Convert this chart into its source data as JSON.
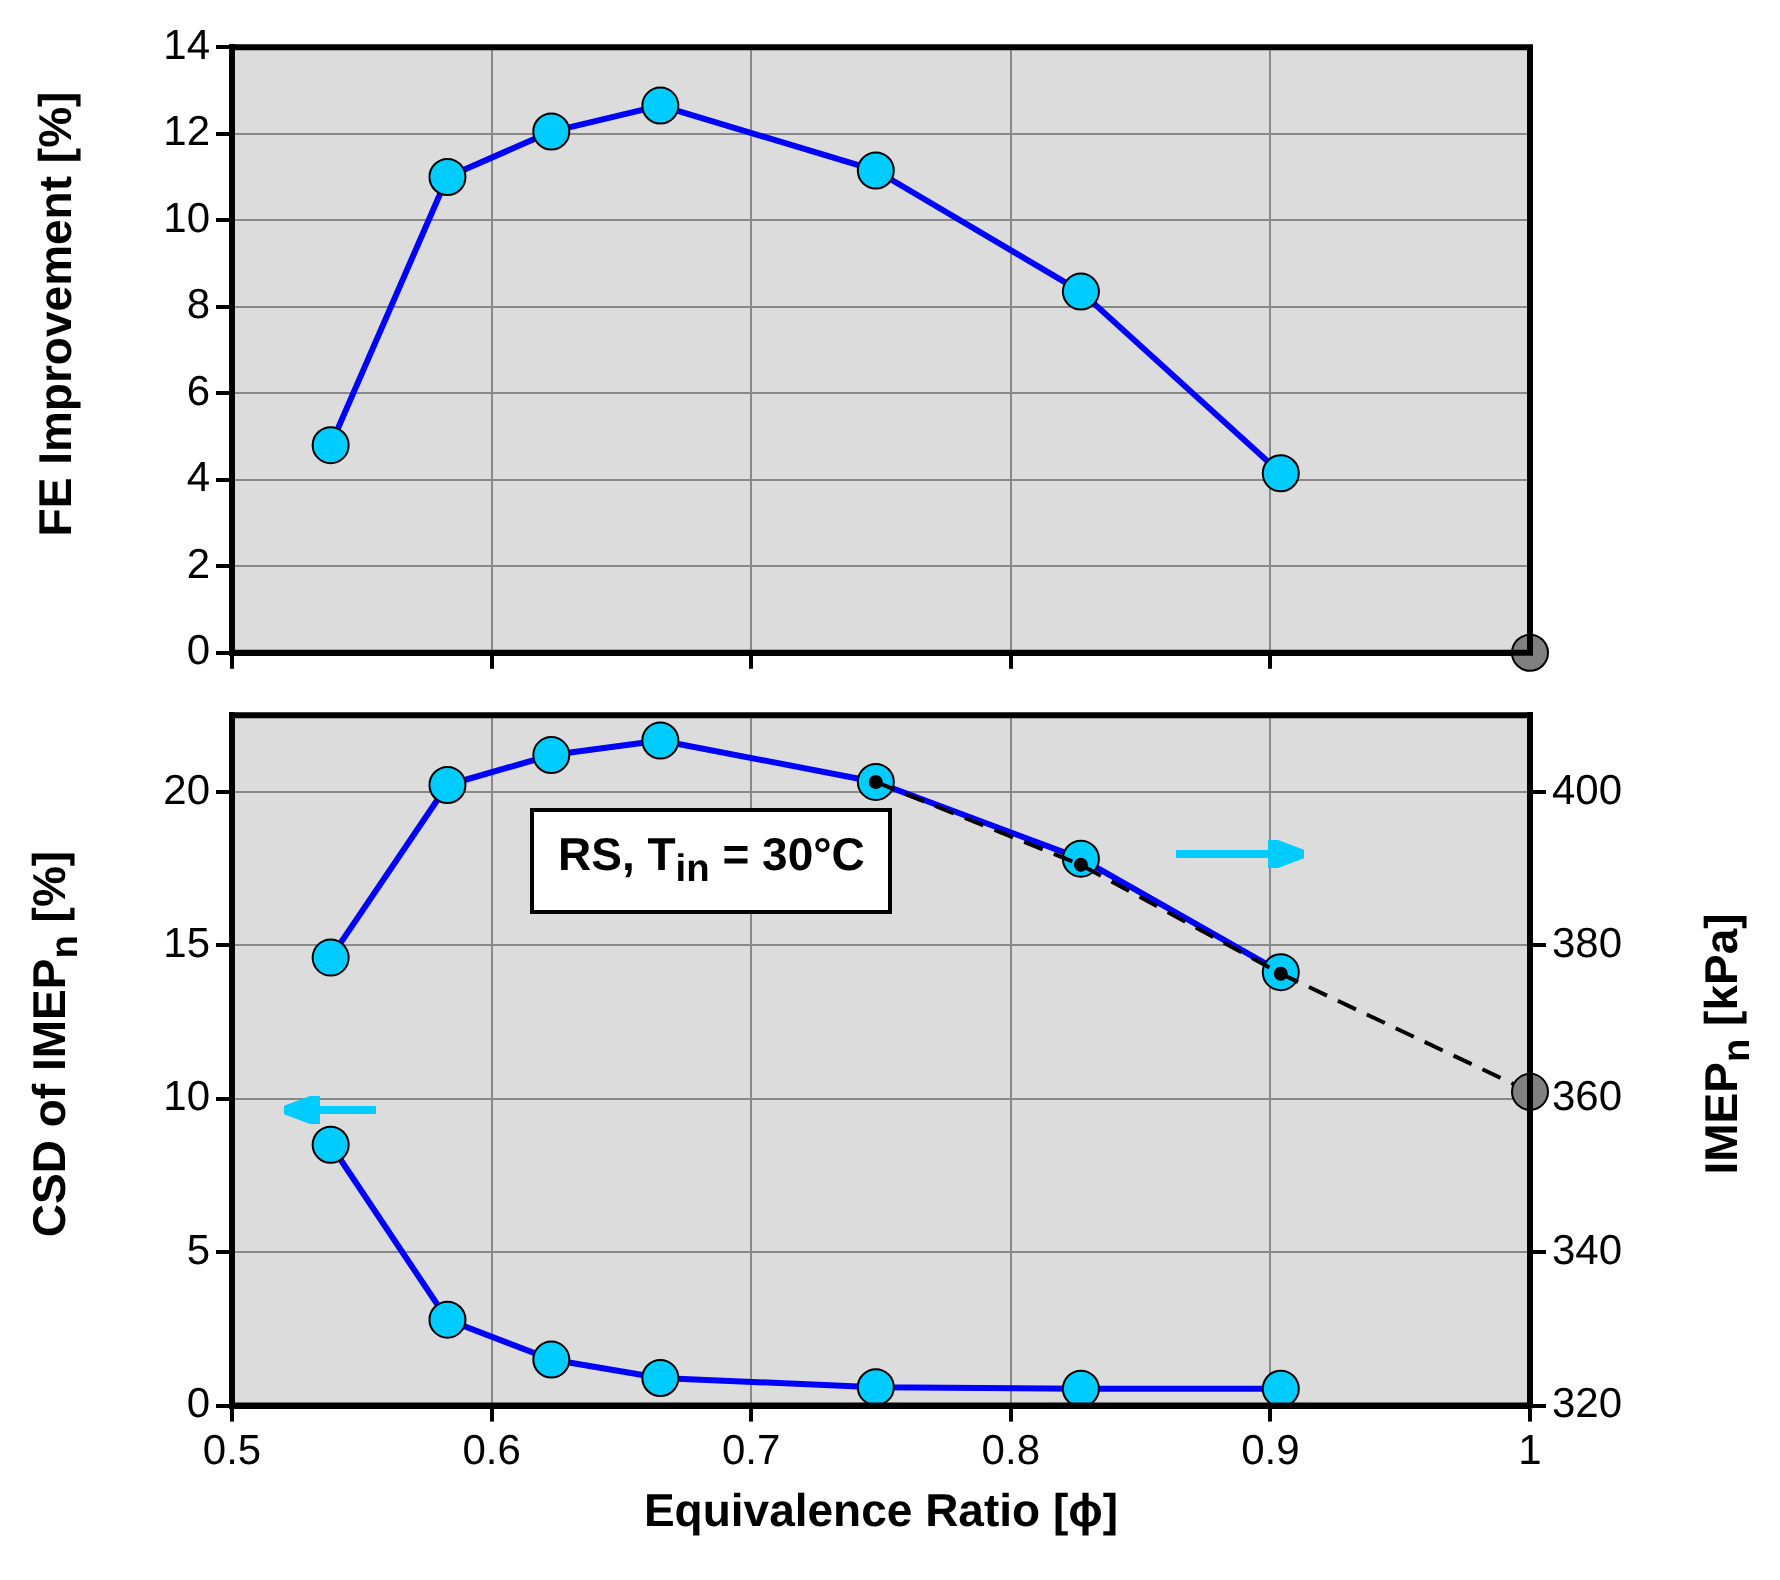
{
  "chart_data": [
    {
      "type": "line",
      "ylabel": "FE Improvement [%]",
      "xlim": [
        0.5,
        1
      ],
      "xticks": [
        0.5,
        0.6,
        0.7,
        0.8,
        0.9,
        1
      ],
      "ylim": [
        0,
        14
      ],
      "yticks": [
        0,
        2,
        4,
        6,
        8,
        10,
        12,
        14
      ],
      "grid": true,
      "marker": "circle",
      "tick_labels": "y",
      "series": [
        {
          "color": "#0000ff",
          "x": [
            0.538,
            0.583,
            0.623,
            0.665,
            0.748,
            0.827,
            0.904
          ],
          "values": [
            4.8,
            11.0,
            12.05,
            12.65,
            11.15,
            8.35,
            4.15
          ]
        },
        {
          "type": "scatter",
          "color": "#808080",
          "x": [
            1
          ],
          "values": [
            0
          ]
        }
      ]
    },
    {
      "type": "line",
      "xlabel": "Equivalence Ratio [ϕ]",
      "ylabel": "CSD of IMEP$_{n}$ [%]",
      "y2label": "IMEP$_{n}$ [kPa]",
      "annotations": [
        "RS, T$_{in}$ = 30°C"
      ],
      "xlim": [
        0.5,
        1
      ],
      "xticks": [
        0.5,
        0.6,
        0.7,
        0.8,
        0.9,
        1
      ],
      "ylim": [
        0,
        22.5
      ],
      "yticks": [
        0,
        5,
        10,
        15,
        20
      ],
      "y2lim": [
        320,
        410
      ],
      "y2ticks": [
        320,
        340,
        360,
        380,
        400
      ],
      "grid": true,
      "marker": "circle",
      "series": [
        {
          "color": "#0000ff",
          "x": [
            0.538,
            0.583,
            0.623,
            0.665,
            0.748,
            0.827,
            0.904
          ],
          "values": [
            8.5,
            2.8,
            1.5,
            0.9,
            0.6,
            0.55,
            0.55
          ]
        },
        {
          "color": "#0000ff",
          "axis": "y2",
          "x": [
            0.538,
            0.583,
            0.623,
            0.665,
            0.748,
            0.827,
            0.904
          ],
          "values": [
            378.4,
            400.9,
            404.8,
            406.7,
            401.3,
            391.3,
            376.5
          ]
        },
        {
          "color": "#000000",
          "axis": "y2",
          "line_style": "dashed",
          "x": [
            0.748,
            0.827,
            0.904,
            1
          ],
          "values": [
            401.3,
            390.5,
            376.3,
            360.9
          ]
        },
        {
          "type": "scatter",
          "color": "#808080",
          "axis": "y2",
          "x": [
            1
          ],
          "values": [
            360.9
          ]
        }
      ]
    }
  ]
}
